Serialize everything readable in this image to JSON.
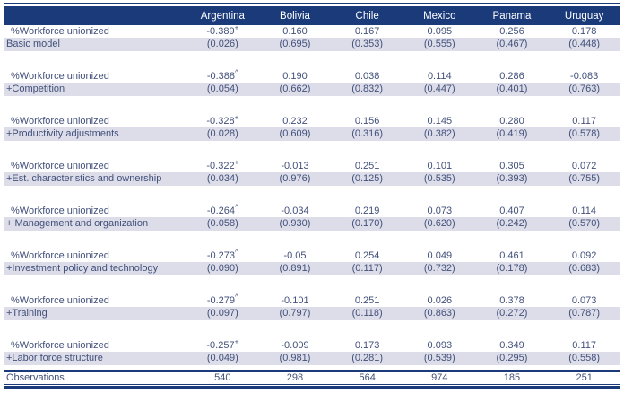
{
  "table": {
    "columns": [
      "",
      "Argentina",
      "Bolivia",
      "Chile",
      "Mexico",
      "Panama",
      "Uruguay"
    ],
    "blocks": [
      {
        "coef_label": "%Workforce unionized",
        "model_label": "Basic model",
        "coefs": [
          "-0.389+",
          "0.160",
          "0.167",
          "0.095",
          "0.256",
          "0.178"
        ],
        "ses": [
          "(0.026)",
          "(0.695)",
          "(0.353)",
          "(0.555)",
          "(0.467)",
          "(0.448)"
        ]
      },
      {
        "coef_label": "%Workforce unionized",
        "model_label": "+Competition",
        "coefs": [
          "-0.388^",
          "0.190",
          "0.038",
          "0.114",
          "0.286",
          "-0.083"
        ],
        "ses": [
          "(0.054)",
          "(0.662)",
          "(0.832)",
          "(0.447)",
          "(0.401)",
          "(0.763)"
        ]
      },
      {
        "coef_label": "%Workforce unionized",
        "model_label": "+Productivity adjustments",
        "coefs": [
          "-0.328+",
          "0.232",
          "0.156",
          "0.145",
          "0.280",
          "0.117"
        ],
        "ses": [
          "(0.028)",
          "(0.609)",
          "(0.316)",
          "(0.382)",
          "(0.419)",
          "(0.578)"
        ]
      },
      {
        "coef_label": "%Workforce unionized",
        "model_label": "+Est. characteristics and ownership",
        "coefs": [
          "-0.322+",
          "-0.013",
          "0.251",
          "0.101",
          "0.305",
          "0.072"
        ],
        "ses": [
          "(0.034)",
          "(0.976)",
          "(0.125)",
          "(0.535)",
          "(0.393)",
          "(0.755)"
        ]
      },
      {
        "coef_label": "%Workforce unionized",
        "model_label": "+ Management and organization",
        "coefs": [
          "-0.264^",
          "-0.034",
          "0.219",
          "0.073",
          "0.407",
          "0.114"
        ],
        "ses": [
          "(0.058)",
          "(0.930)",
          "(0.170)",
          "(0.620)",
          "(0.242)",
          "(0.570)"
        ]
      },
      {
        "coef_label": "%Workforce unionized",
        "model_label": "+Investment policy and technology",
        "coefs": [
          "-0.273^",
          "-0.05",
          "0.254",
          "0.049",
          "0.461",
          "0.092"
        ],
        "ses": [
          "(0.090)",
          "(0.891)",
          "(0.117)",
          "(0.732)",
          "(0.178)",
          "(0.683)"
        ]
      },
      {
        "coef_label": "%Workforce unionized",
        "model_label": "+Training",
        "coefs": [
          "-0.279^",
          "-0.101",
          "0.251",
          "0.026",
          "0.378",
          "0.073"
        ],
        "ses": [
          "(0.097)",
          "(0.797)",
          "(0.118)",
          "(0.863)",
          "(0.272)",
          "(0.787)"
        ]
      },
      {
        "coef_label": "%Workforce unionized",
        "model_label": "+Labor force structure",
        "coefs": [
          "-0.257+",
          "-0.009",
          "0.173",
          "0.093",
          "0.349",
          "0.117"
        ],
        "ses": [
          "(0.049)",
          "(0.981)",
          "(0.281)",
          "(0.539)",
          "(0.295)",
          "(0.558)"
        ]
      }
    ],
    "observations": {
      "label": "Observations",
      "values": [
        "540",
        "298",
        "564",
        "974",
        "185",
        "251"
      ]
    }
  },
  "colors": {
    "navy": "#1a3a7a",
    "shaded_row": "#dcdde9",
    "body_text": "#42507a",
    "header_text": "#ffffff"
  }
}
